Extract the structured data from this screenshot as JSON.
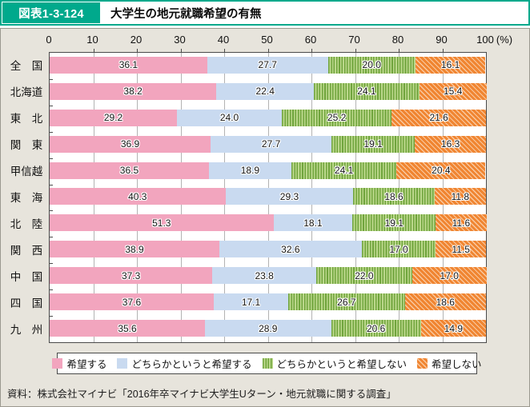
{
  "header": {
    "figure_label": "図表1-3-124",
    "title": "大学生の地元就職希望の有無"
  },
  "chart_data": {
    "type": "bar",
    "orientation": "horizontal-stacked",
    "title": "大学生の地元就職希望の有無",
    "xlim": [
      0,
      100
    ],
    "x_ticks": [
      0,
      10,
      20,
      30,
      40,
      50,
      60,
      70,
      80,
      90,
      100
    ],
    "unit_label": "(%)",
    "grid": true,
    "legend_position": "bottom",
    "categories": [
      "全　国",
      "北海道",
      "東　北",
      "関　東",
      "甲信越",
      "東　海",
      "北　陸",
      "関　西",
      "中　国",
      "四　国",
      "九　州"
    ],
    "series": [
      {
        "name": "希望する",
        "pattern": "solid",
        "base": "#F2A5BE",
        "stripe": "#F2A5BE",
        "values": [
          36.1,
          38.2,
          29.2,
          36.9,
          36.5,
          40.3,
          51.3,
          38.9,
          37.3,
          37.6,
          35.6
        ]
      },
      {
        "name": "どちらかというと希望する",
        "pattern": "solid",
        "base": "#C9DAF0",
        "stripe": "#C9DAF0",
        "values": [
          27.7,
          22.4,
          24.0,
          27.7,
          18.9,
          29.3,
          18.1,
          32.6,
          23.8,
          17.1,
          28.9
        ]
      },
      {
        "name": "どちらかというと希望しない",
        "pattern": "vstripe",
        "base": "#BCD88C",
        "stripe": "#6FA43C",
        "values": [
          20.0,
          24.1,
          25.2,
          19.1,
          24.1,
          18.6,
          19.1,
          17.0,
          22.0,
          26.7,
          20.6
        ]
      },
      {
        "name": "希望しない",
        "pattern": "dstripe",
        "base": "#F08531",
        "stripe": "#F9C9A0",
        "values": [
          16.1,
          15.4,
          21.6,
          16.3,
          20.4,
          11.8,
          11.6,
          11.5,
          17.0,
          18.6,
          14.9
        ]
      }
    ]
  },
  "source": "資料：株式会社マイナビ「2016年卒マイナビ大学生Uターン・地元就職に関する調査」",
  "colors": {
    "header_green": "#00A98C",
    "panel_bg": "#E7E4DC",
    "plot_bg": "#ffffff",
    "gridline": "#B3B3B3",
    "pink": "#F2A5BE",
    "light_blue": "#C9DAF0",
    "green_light": "#BCD88C",
    "green_dark": "#6FA43C",
    "orange": "#F08531",
    "orange_light": "#F9C9A0"
  }
}
